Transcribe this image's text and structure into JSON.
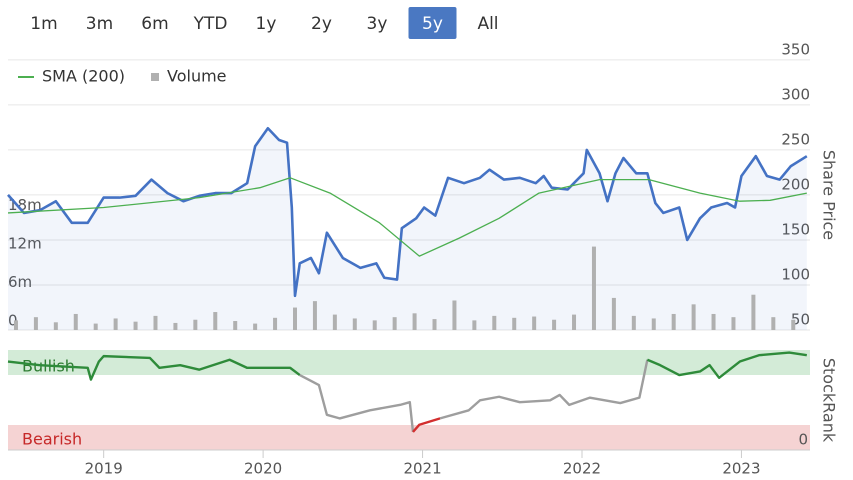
{
  "range_buttons": {
    "options": [
      "1m",
      "3m",
      "6m",
      "YTD",
      "1y",
      "2y",
      "3y",
      "5y",
      "All"
    ],
    "selected": "5y"
  },
  "chart_data": [
    {
      "type": "line",
      "ylabel": "Share Price",
      "legend": "top-left",
      "grid": true,
      "xlim": [
        2018.4,
        2023.43
      ],
      "ylim": [
        50,
        372
      ],
      "yticks": [
        50,
        100,
        150,
        200,
        250,
        300,
        350
      ],
      "y2lim": [
        0,
        45200000
      ],
      "y2ticks": [
        0,
        {
          "value": 6000000,
          "label": "6m"
        },
        {
          "value": 12000000,
          "label": "12m"
        },
        {
          "value": 18000000,
          "label": "18m"
        }
      ],
      "series": [
        {
          "color": "#4472c4",
          "x": [
            2018.4,
            2018.5,
            2018.6,
            2018.7,
            2018.8,
            2018.9,
            2019.0,
            2019.1,
            2019.2,
            2019.3,
            2019.4,
            2019.5,
            2019.6,
            2019.7,
            2019.8,
            2019.9,
            2019.95,
            2020.03,
            2020.1,
            2020.15,
            2020.18,
            2020.2,
            2020.23,
            2020.3,
            2020.35,
            2020.4,
            2020.5,
            2020.61,
            2020.71,
            2020.76,
            2020.84,
            2020.87,
            2020.96,
            2021.01,
            2021.08,
            2021.16,
            2021.26,
            2021.36,
            2021.42,
            2021.51,
            2021.61,
            2021.71,
            2021.76,
            2021.81,
            2021.91,
            2022.01,
            2022.03,
            2022.11,
            2022.16,
            2022.21,
            2022.26,
            2022.34,
            2022.41,
            2022.46,
            2022.51,
            2022.61,
            2022.66,
            2022.74,
            2022.81,
            2022.91,
            2022.96,
            2023.0,
            2023.09,
            2023.16,
            2023.24,
            2023.31,
            2023.41
          ],
          "values": [
            200,
            180,
            183,
            193,
            169,
            169,
            197,
            197,
            199,
            217,
            202,
            193,
            199,
            202,
            202,
            213,
            254,
            274,
            261,
            258,
            186,
            88,
            124,
            130,
            113,
            158,
            130,
            119,
            124,
            108,
            106,
            163,
            174,
            186,
            177,
            219,
            213,
            219,
            228,
            217,
            219,
            213,
            221,
            208,
            206,
            224,
            250,
            224,
            193,
            224,
            241,
            224,
            224,
            191,
            180,
            186,
            150,
            174,
            186,
            191,
            186,
            221,
            243,
            221,
            217,
            232,
            243
          ]
        },
        {
          "name": "SMA (200)",
          "color": "#4caf50",
          "x": [
            2018.4,
            2019.0,
            2019.6,
            2019.98,
            2020.17,
            2020.42,
            2020.73,
            2020.98,
            2021.23,
            2021.48,
            2021.73,
            2022.11,
            2022.42,
            2022.74,
            2022.99,
            2023.18,
            2023.41
          ],
          "values": [
            180,
            186,
            197,
            208,
            219,
            202,
            169,
            132,
            152,
            174,
            202,
            217,
            217,
            202,
            193,
            194,
            202
          ]
        },
        {
          "name": "Volume",
          "type": "bar",
          "axis": "y2",
          "color": "#b0b0b0",
          "x": [
            2018.45,
            2018.575,
            2018.7,
            2018.825,
            2018.95,
            2019.075,
            2019.2,
            2019.325,
            2019.45,
            2019.575,
            2019.7,
            2019.825,
            2019.95,
            2020.075,
            2020.2,
            2020.325,
            2020.45,
            2020.575,
            2020.7,
            2020.825,
            2020.95,
            2021.075,
            2021.2,
            2021.325,
            2021.45,
            2021.575,
            2021.7,
            2021.825,
            2021.95,
            2022.075,
            2022.2,
            2022.325,
            2022.45,
            2022.575,
            2022.7,
            2022.825,
            2022.95,
            2023.075,
            2023.2,
            2023.325
          ],
          "values": [
            1500000,
            2000000,
            1200000,
            2500000,
            1000000,
            1800000,
            1300000,
            2200000,
            1100000,
            1600000,
            2800000,
            1400000,
            1000000,
            1900000,
            3500000,
            4500000,
            2400000,
            1800000,
            1500000,
            2000000,
            2600000,
            1700000,
            4600000,
            1500000,
            2200000,
            1900000,
            2100000,
            1600000,
            2400000,
            13000000,
            5000000,
            2200000,
            1800000,
            2500000,
            4000000,
            2500000,
            2000000,
            5500000,
            2000000,
            1600000
          ]
        }
      ]
    },
    {
      "type": "line",
      "ylabel": "StockRank",
      "xlim": [
        2018.4,
        2023.43
      ],
      "ylim": [
        -11,
        102
      ],
      "yticks": [
        0
      ],
      "xticks": [
        2019,
        2020,
        2021,
        2022,
        2023
      ],
      "bands": [
        "Bullish",
        "Bearish"
      ],
      "x": [
        2018.4,
        2018.6,
        2018.9,
        2018.92,
        2018.97,
        2019.0,
        2019.29,
        2019.35,
        2019.48,
        2019.6,
        2019.79,
        2019.9,
        2020.17,
        2020.23,
        2020.35,
        2020.4,
        2020.48,
        2020.67,
        2020.86,
        2020.92,
        2020.94,
        2020.98,
        2021.11,
        2021.29,
        2021.36,
        2021.48,
        2021.61,
        2021.8,
        2021.86,
        2021.92,
        2022.05,
        2022.24,
        2022.36,
        2022.41,
        2022.49,
        2022.61,
        2022.74,
        2022.8,
        2022.86,
        2022.99,
        2023.11,
        2023.3,
        2023.41
      ],
      "values": [
        87,
        83,
        80,
        67,
        87,
        93,
        91,
        80,
        83,
        78,
        89,
        80,
        80,
        72,
        61,
        28,
        24,
        33,
        39,
        42,
        9,
        17,
        24,
        33,
        44,
        48,
        42,
        44,
        50,
        39,
        47,
        41,
        47,
        89,
        83,
        72,
        76,
        83,
        69,
        87,
        94,
        97,
        94
      ]
    }
  ]
}
